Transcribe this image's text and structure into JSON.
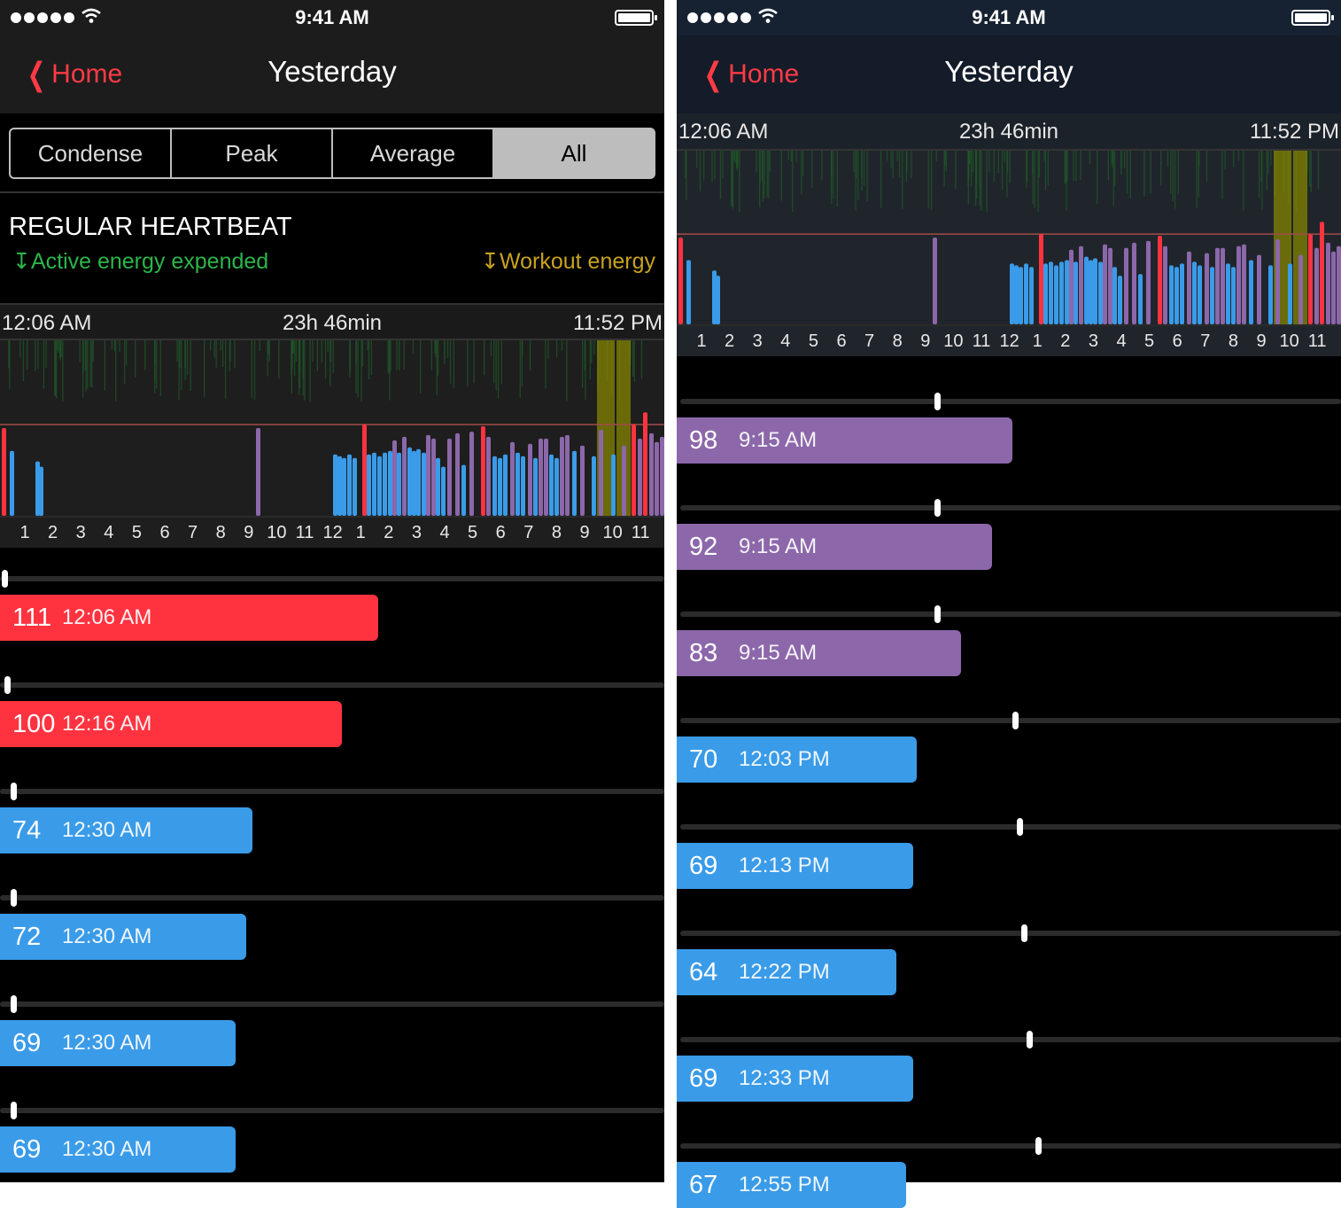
{
  "status": {
    "time": "9:41 AM"
  },
  "nav": {
    "back_label": "Home",
    "title": "Yesterday"
  },
  "segments": [
    {
      "label": "Condense",
      "active": false
    },
    {
      "label": "Peak",
      "active": false
    },
    {
      "label": "Average",
      "active": false
    },
    {
      "label": "All",
      "active": true
    }
  ],
  "section": {
    "title": "REGULAR HEARTBEAT",
    "legend_active": "↧Active energy expended",
    "legend_workout": "↧Workout energy"
  },
  "chart_header": {
    "start": "12:06 AM",
    "duration": "23h 46min",
    "end": "11:52 PM"
  },
  "hour_ticks": [
    "1",
    "2",
    "3",
    "4",
    "5",
    "6",
    "7",
    "8",
    "9",
    "10",
    "11",
    "12",
    "1",
    "2",
    "3",
    "4",
    "5",
    "6",
    "7",
    "8",
    "9",
    "10",
    "11"
  ],
  "colors": {
    "red": "#ff3340",
    "blue": "#3a9be8",
    "purple": "#8c67aa",
    "workout": "#8a8a00",
    "background": "#000000"
  },
  "left_list": [
    {
      "value": "111",
      "time": "12:06 AM",
      "color": "red",
      "fraction": 0.57,
      "slider": 0.003
    },
    {
      "value": "100",
      "time": "12:16 AM",
      "color": "red",
      "fraction": 0.515,
      "slider": 0.007
    },
    {
      "value": "74",
      "time": "12:30 AM",
      "color": "blue",
      "fraction": 0.38,
      "slider": 0.016
    },
    {
      "value": "72",
      "time": "12:30 AM",
      "color": "blue",
      "fraction": 0.37,
      "slider": 0.016
    },
    {
      "value": "69",
      "time": "12:30 AM",
      "color": "blue",
      "fraction": 0.355,
      "slider": 0.016
    },
    {
      "value": "69",
      "time": "12:30 AM",
      "color": "blue",
      "fraction": 0.355,
      "slider": 0.016
    }
  ],
  "right_list": [
    {
      "value": "98",
      "time": "9:15 AM",
      "color": "purple",
      "fraction": 0.505,
      "slider": 0.385
    },
    {
      "value": "92",
      "time": "9:15 AM",
      "color": "purple",
      "fraction": 0.475,
      "slider": 0.385
    },
    {
      "value": "83",
      "time": "9:15 AM",
      "color": "purple",
      "fraction": 0.428,
      "slider": 0.385
    },
    {
      "value": "70",
      "time": "12:03 PM",
      "color": "blue",
      "fraction": 0.361,
      "slider": 0.503
    },
    {
      "value": "69",
      "time": "12:13 PM",
      "color": "blue",
      "fraction": 0.356,
      "slider": 0.51
    },
    {
      "value": "64",
      "time": "12:22 PM",
      "color": "blue",
      "fraction": 0.33,
      "slider": 0.516
    },
    {
      "value": "69",
      "time": "12:33 PM",
      "color": "blue",
      "fraction": 0.356,
      "slider": 0.524
    },
    {
      "value": "67",
      "time": "12:55 PM",
      "color": "blue",
      "fraction": 0.345,
      "slider": 0.538
    }
  ]
}
